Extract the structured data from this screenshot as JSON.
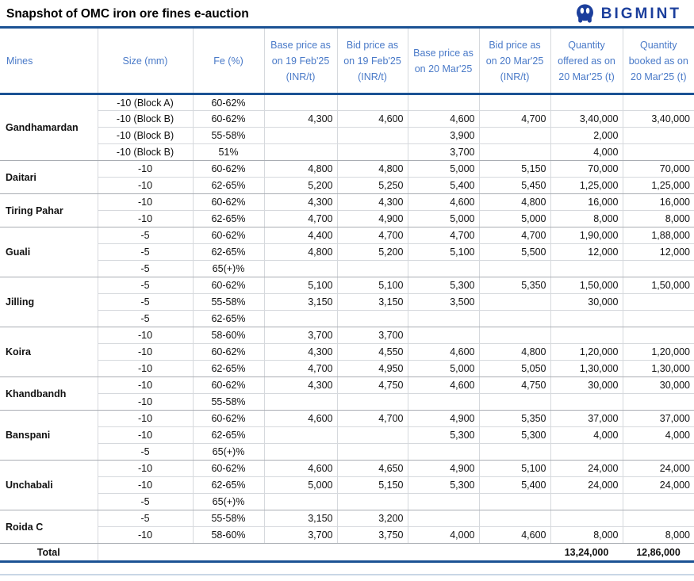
{
  "title": "Snapshot of OMC iron ore fines e-auction",
  "logo": {
    "text": "BIGMINT"
  },
  "colors": {
    "header_text_blue": "#4a7ac8",
    "accent_border_navy": "#1b5294",
    "logo_blue": "#1c3f9c",
    "grid_light": "#d6d9dd",
    "grid_group": "#a9adb3"
  },
  "chart_data": {
    "type": "table",
    "title": "Snapshot of OMC iron ore fines e-auction",
    "columns": [
      "Mines",
      "Size (mm)",
      "Fe (%)",
      "Base price as on 19 Feb'25 (INR/t)",
      "Bid price as on 19 Feb'25 (INR/t)",
      "Base price as on 20 Mar'25",
      "Bid price as on 20 Mar'25 (INR/t)",
      "Quantity offered as on 20 Mar'25 (t)",
      "Quantity booked as on 20 Mar'25 (t)"
    ],
    "groups": [
      {
        "mine": "Gandhamardan",
        "rows": [
          [
            "-10 (Block A)",
            "60-62%",
            "",
            "",
            "",
            "",
            "",
            ""
          ],
          [
            "-10 (Block B)",
            "60-62%",
            "4,300",
            "4,600",
            "4,600",
            "4,700",
            "3,40,000",
            "3,40,000"
          ],
          [
            "-10 (Block B)",
            "55-58%",
            "",
            "",
            "3,900",
            "",
            "2,000",
            ""
          ],
          [
            "-10 (Block B)",
            "51%",
            "",
            "",
            "3,700",
            "",
            "4,000",
            ""
          ]
        ]
      },
      {
        "mine": "Daitari",
        "rows": [
          [
            "-10",
            "60-62%",
            "4,800",
            "4,800",
            "5,000",
            "5,150",
            "70,000",
            "70,000"
          ],
          [
            "-10",
            "62-65%",
            "5,200",
            "5,250",
            "5,400",
            "5,450",
            "1,25,000",
            "1,25,000"
          ]
        ]
      },
      {
        "mine": "Tiring Pahar",
        "rows": [
          [
            "-10",
            "60-62%",
            "4,300",
            "4,300",
            "4,600",
            "4,800",
            "16,000",
            "16,000"
          ],
          [
            "-10",
            "62-65%",
            "4,700",
            "4,900",
            "5,000",
            "5,000",
            "8,000",
            "8,000"
          ]
        ]
      },
      {
        "mine": "Guali",
        "rows": [
          [
            "-5",
            "60-62%",
            "4,400",
            "4,700",
            "4,700",
            "4,700",
            "1,90,000",
            "1,88,000"
          ],
          [
            "-5",
            "62-65%",
            "4,800",
            "5,200",
            "5,100",
            "5,500",
            "12,000",
            "12,000"
          ],
          [
            "-5",
            "65(+)%",
            "",
            "",
            "",
            "",
            "",
            ""
          ]
        ]
      },
      {
        "mine": "Jilling",
        "rows": [
          [
            "-5",
            "60-62%",
            "5,100",
            "5,100",
            "5,300",
            "5,350",
            "1,50,000",
            "1,50,000"
          ],
          [
            "-5",
            "55-58%",
            "3,150",
            "3,150",
            "3,500",
            "",
            "30,000",
            ""
          ],
          [
            "-5",
            "62-65%",
            "",
            "",
            "",
            "",
            "",
            ""
          ]
        ]
      },
      {
        "mine": "Koira",
        "rows": [
          [
            "-10",
            "58-60%",
            "3,700",
            "3,700",
            "",
            "",
            "",
            ""
          ],
          [
            "-10",
            "60-62%",
            "4,300",
            "4,550",
            "4,600",
            "4,800",
            "1,20,000",
            "1,20,000"
          ],
          [
            "-10",
            "62-65%",
            "4,700",
            "4,950",
            "5,000",
            "5,050",
            "1,30,000",
            "1,30,000"
          ]
        ]
      },
      {
        "mine": "Khandbandh",
        "rows": [
          [
            "-10",
            "60-62%",
            "4,300",
            "4,750",
            "4,600",
            "4,750",
            "30,000",
            "30,000"
          ],
          [
            "-10",
            "55-58%",
            "",
            "",
            "",
            "",
            "",
            ""
          ]
        ]
      },
      {
        "mine": "Banspani",
        "rows": [
          [
            "-10",
            "60-62%",
            "4,600",
            "4,700",
            "4,900",
            "5,350",
            "37,000",
            "37,000"
          ],
          [
            "-10",
            "62-65%",
            "",
            "",
            "5,300",
            "5,300",
            "4,000",
            "4,000"
          ],
          [
            "-5",
            "65(+)%",
            "",
            "",
            "",
            "",
            "",
            ""
          ]
        ]
      },
      {
        "mine": "Unchabali",
        "rows": [
          [
            "-10",
            "60-62%",
            "4,600",
            "4,650",
            "4,900",
            "5,100",
            "24,000",
            "24,000"
          ],
          [
            "-10",
            "62-65%",
            "5,000",
            "5,150",
            "5,300",
            "5,400",
            "24,000",
            "24,000"
          ],
          [
            "-5",
            "65(+)%",
            "",
            "",
            "",
            "",
            "",
            ""
          ]
        ]
      },
      {
        "mine": "Roida C",
        "rows": [
          [
            "-5",
            "55-58%",
            "3,150",
            "3,200",
            "",
            "",
            "",
            ""
          ],
          [
            "-10",
            "58-60%",
            "3,700",
            "3,750",
            "4,000",
            "4,600",
            "8,000",
            "8,000"
          ]
        ]
      }
    ],
    "total_row": {
      "label": "Total",
      "quantity_offered": "13,24,000",
      "quantity_booked": "12,86,000"
    }
  }
}
